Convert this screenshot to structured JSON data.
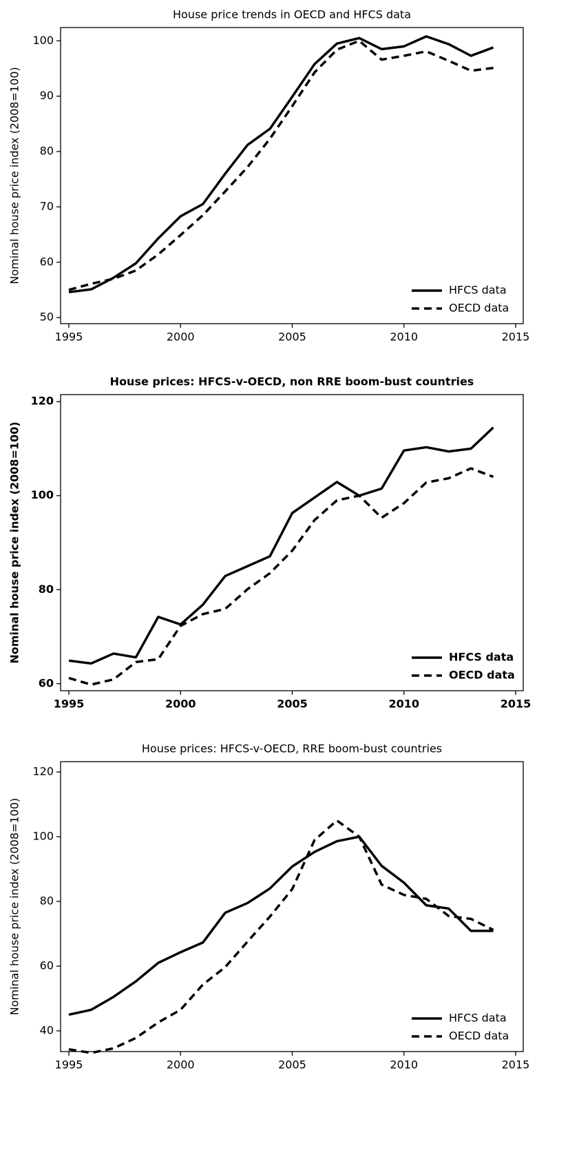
{
  "chart_data": [
    {
      "type": "line",
      "title": "House price trends in OECD and HFCS data",
      "ylabel": "Nominal house price index (2008=100)",
      "font_weight": "normal",
      "x": [
        1995,
        1996,
        1997,
        1998,
        1999,
        2000,
        2001,
        2002,
        2003,
        2004,
        2005,
        2006,
        2007,
        2008,
        2009,
        2010,
        2011,
        2012,
        2013,
        2014
      ],
      "series": [
        {
          "name": "HFCS data",
          "color": "#000000",
          "line_style": "solid",
          "values": [
            54.6,
            55.1,
            57.2,
            59.8,
            64.3,
            68.3,
            70.5,
            76.0,
            81.2,
            84.1,
            89.9,
            95.8,
            99.5,
            100.5,
            98.5,
            99.0,
            100.8,
            99.4,
            97.3,
            98.8
          ]
        },
        {
          "name": "OECD data",
          "color": "#000000",
          "line_style": "dashed",
          "values": [
            55.0,
            56.1,
            57.0,
            58.5,
            61.4,
            64.9,
            68.5,
            72.8,
            77.2,
            82.3,
            88.2,
            94.3,
            98.4,
            100.0,
            96.6,
            97.3,
            98.1,
            96.4,
            94.6,
            95.1
          ]
        }
      ],
      "xlim": [
        1994.63,
        2015.34
      ],
      "xticks": [
        1995,
        2000,
        2005,
        2010,
        2015
      ],
      "ylim": [
        48.9,
        102.4
      ],
      "yticks": [
        50,
        60,
        70,
        80,
        90,
        100
      ],
      "legend": "lower right"
    },
    {
      "type": "line",
      "title": "House prices: HFCS-v-OECD, non RRE boom-bust countries",
      "ylabel": "Nominal house price index (2008=100)",
      "font_weight": "bold",
      "x": [
        1995,
        1996,
        1997,
        1998,
        1999,
        2000,
        2001,
        2002,
        2003,
        2004,
        2005,
        2006,
        2007,
        2008,
        2009,
        2010,
        2011,
        2012,
        2013,
        2014
      ],
      "series": [
        {
          "name": "HFCS data",
          "color": "#000000",
          "line_style": "solid",
          "values": [
            64.9,
            64.3,
            66.4,
            65.6,
            74.2,
            72.6,
            76.8,
            82.9,
            85.0,
            87.1,
            96.3,
            99.6,
            102.9,
            100.0,
            101.5,
            109.6,
            110.3,
            109.4,
            110.0,
            114.5
          ]
        },
        {
          "name": "OECD data",
          "color": "#000000",
          "line_style": "dashed",
          "values": [
            61.2,
            59.8,
            60.9,
            64.6,
            65.2,
            72.3,
            74.8,
            75.9,
            80.1,
            83.5,
            88.3,
            94.8,
            99.0,
            100.0,
            95.3,
            98.4,
            102.8,
            103.7,
            105.8,
            104.0
          ]
        }
      ],
      "xlim": [
        1994.63,
        2015.34
      ],
      "xticks": [
        1995,
        2000,
        2005,
        2010,
        2015
      ],
      "ylim": [
        58.5,
        121.5
      ],
      "yticks": [
        60,
        80,
        100,
        120
      ],
      "legend": "lower right"
    },
    {
      "type": "line",
      "title": "House prices: HFCS-v-OECD, RRE boom-bust countries",
      "ylabel": "Nominal house price index (2008=100)",
      "font_weight": "normal",
      "x": [
        1995,
        1996,
        1997,
        1998,
        1999,
        2000,
        2001,
        2002,
        2003,
        2004,
        2005,
        2006,
        2007,
        2008,
        2009,
        2010,
        2011,
        2012,
        2013,
        2014
      ],
      "series": [
        {
          "name": "HFCS data",
          "color": "#000000",
          "line_style": "solid",
          "values": [
            45.0,
            46.5,
            50.5,
            55.3,
            61.0,
            64.3,
            67.3,
            76.5,
            79.5,
            84.0,
            90.8,
            95.3,
            98.6,
            100.0,
            91.0,
            85.8,
            78.8,
            77.8,
            70.9,
            70.9
          ]
        },
        {
          "name": "OECD data",
          "color": "#000000",
          "line_style": "dashed",
          "values": [
            34.3,
            33.2,
            34.6,
            37.8,
            42.6,
            46.5,
            54.3,
            59.7,
            67.6,
            75.3,
            83.8,
            99.0,
            105.0,
            100.0,
            85.2,
            82.0,
            80.8,
            75.5,
            74.6,
            71.2
          ]
        }
      ],
      "xlim": [
        1994.63,
        2015.34
      ],
      "xticks": [
        1995,
        2000,
        2005,
        2010,
        2015
      ],
      "ylim": [
        33.6,
        123.2
      ],
      "yticks": [
        40,
        60,
        80,
        100,
        120
      ],
      "legend": "lower right"
    }
  ]
}
